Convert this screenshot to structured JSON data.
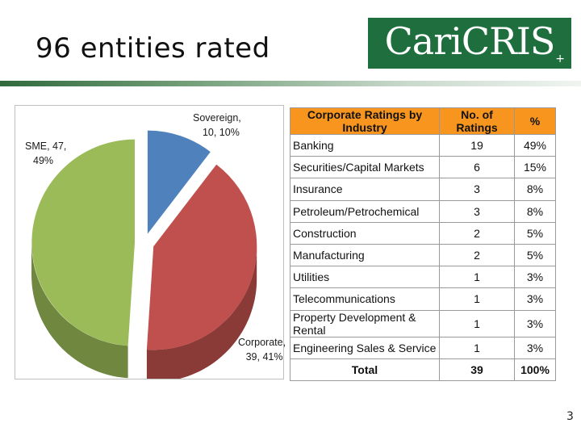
{
  "title": "96 entities rated",
  "logo": {
    "text": "CariCRIS",
    "plus": "+"
  },
  "page_number": "3",
  "colors": {
    "sovereign": "#4f81bd",
    "corporate": "#c0504d",
    "sme": "#9bbb59",
    "header": "#f7951f",
    "logo_bg": "#1f6e3d"
  },
  "pie_labels": {
    "sovereign": [
      "Sovereign,",
      "10, 10%"
    ],
    "corporate": [
      "Corporate,",
      "39, 41%"
    ],
    "sme": [
      "SME, 47,",
      "49%"
    ]
  },
  "table": {
    "headers": [
      "Corporate Ratings by Industry",
      "No. of Ratings",
      "%"
    ],
    "rows": [
      [
        "Banking",
        "19",
        "49%"
      ],
      [
        "Securities/Capital Markets",
        "6",
        "15%"
      ],
      [
        "Insurance",
        "3",
        "8%"
      ],
      [
        "Petroleum/Petrochemical",
        "3",
        "8%"
      ],
      [
        "Construction",
        "2",
        "5%"
      ],
      [
        "Manufacturing",
        "2",
        "5%"
      ],
      [
        "Utilities",
        "1",
        "3%"
      ],
      [
        "Telecommunications",
        "1",
        "3%"
      ],
      [
        "Property Development & Rental",
        "1",
        "3%"
      ],
      [
        "Engineering Sales & Service",
        "1",
        "3%"
      ]
    ],
    "total": [
      "Total",
      "39",
      "100%"
    ]
  },
  "chart_data": [
    {
      "type": "pie",
      "categories": [
        "Sovereign",
        "Corporate",
        "SME"
      ],
      "values": [
        10,
        39,
        47
      ],
      "percentages": [
        10,
        41,
        49
      ],
      "exploded": true,
      "three_d": true
    },
    {
      "type": "table",
      "columns": [
        "Corporate Ratings by Industry",
        "No. of Ratings",
        "%"
      ],
      "categories": [
        "Banking",
        "Securities/Capital Markets",
        "Insurance",
        "Petroleum/Petrochemical",
        "Construction",
        "Manufacturing",
        "Utilities",
        "Telecommunications",
        "Property Development & Rental",
        "Engineering Sales & Service"
      ],
      "values": [
        19,
        6,
        3,
        3,
        2,
        2,
        1,
        1,
        1,
        1
      ],
      "percentages": [
        49,
        15,
        8,
        8,
        5,
        5,
        3,
        3,
        3,
        3
      ],
      "total": 39
    }
  ]
}
